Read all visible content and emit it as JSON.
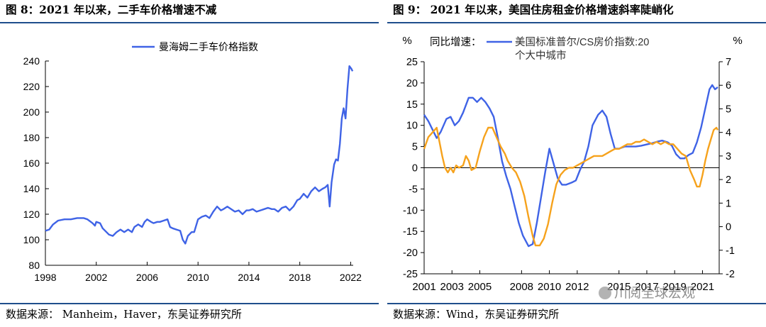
{
  "panels": [
    {
      "title": "图 8：2021 年以来，二手车价格增速不减",
      "source": "数据来源： Manheim，Haver，东吴证券研究所"
    },
    {
      "title": "图 9：  2021 年以来，美国住房租金价格增速斜率陡峭化",
      "source": "数据来源：Wind，东吴证券研究所"
    }
  ],
  "watermark": "川阅全球宏观",
  "colors": {
    "blue": "#3f63e6",
    "orange": "#f6a21c",
    "rule": "#1f4e8c"
  },
  "chart_data": [
    {
      "type": "line",
      "title": "",
      "xlabel": "",
      "ylabel": "",
      "xlim": [
        1998,
        2022.2
      ],
      "ylim": [
        80,
        240
      ],
      "x_ticks": [
        "1998",
        "2002",
        "2006",
        "2010",
        "2014",
        "2018",
        "2022"
      ],
      "y_ticks": [
        "80",
        "100",
        "120",
        "140",
        "160",
        "180",
        "200",
        "220",
        "240"
      ],
      "legend_position": "top-center",
      "series": [
        {
          "name": "曼海姆二手车价格指数",
          "color": "#3f63e6",
          "points": [
            [
              1998.0,
              107
            ],
            [
              1998.3,
              108
            ],
            [
              1998.6,
              112
            ],
            [
              1999.0,
              115
            ],
            [
              1999.5,
              116
            ],
            [
              2000.0,
              116
            ],
            [
              2000.5,
              117
            ],
            [
              2001.0,
              117
            ],
            [
              2001.3,
              116
            ],
            [
              2001.7,
              113
            ],
            [
              2001.9,
              111
            ],
            [
              2002.0,
              114
            ],
            [
              2002.3,
              113
            ],
            [
              2002.5,
              109
            ],
            [
              2002.8,
              106
            ],
            [
              2003.0,
              104
            ],
            [
              2003.3,
              103
            ],
            [
              2003.6,
              106
            ],
            [
              2003.9,
              108
            ],
            [
              2004.2,
              106
            ],
            [
              2004.5,
              108
            ],
            [
              2004.8,
              106
            ],
            [
              2005.0,
              110
            ],
            [
              2005.3,
              112
            ],
            [
              2005.6,
              110
            ],
            [
              2005.8,
              114
            ],
            [
              2006.0,
              116
            ],
            [
              2006.3,
              114
            ],
            [
              2006.5,
              113
            ],
            [
              2006.8,
              114
            ],
            [
              2007.0,
              114
            ],
            [
              2007.3,
              115
            ],
            [
              2007.6,
              116
            ],
            [
              2007.8,
              110
            ],
            [
              2008.0,
              109
            ],
            [
              2008.3,
              108
            ],
            [
              2008.6,
              107
            ],
            [
              2008.8,
              100
            ],
            [
              2009.0,
              97
            ],
            [
              2009.2,
              103
            ],
            [
              2009.5,
              106
            ],
            [
              2009.7,
              106
            ],
            [
              2010.0,
              116
            ],
            [
              2010.3,
              118
            ],
            [
              2010.6,
              119
            ],
            [
              2010.9,
              117
            ],
            [
              2011.2,
              122
            ],
            [
              2011.5,
              126
            ],
            [
              2011.8,
              123
            ],
            [
              2012.0,
              124
            ],
            [
              2012.3,
              126
            ],
            [
              2012.6,
              124
            ],
            [
              2012.9,
              122
            ],
            [
              2013.2,
              123
            ],
            [
              2013.5,
              120
            ],
            [
              2013.8,
              123
            ],
            [
              2014.0,
              123
            ],
            [
              2014.3,
              124
            ],
            [
              2014.6,
              122
            ],
            [
              2014.9,
              123
            ],
            [
              2015.2,
              124
            ],
            [
              2015.5,
              125
            ],
            [
              2015.8,
              124
            ],
            [
              2016.0,
              124
            ],
            [
              2016.3,
              122
            ],
            [
              2016.6,
              125
            ],
            [
              2016.9,
              126
            ],
            [
              2017.2,
              123
            ],
            [
              2017.5,
              126
            ],
            [
              2017.8,
              131
            ],
            [
              2018.0,
              132
            ],
            [
              2018.3,
              136
            ],
            [
              2018.6,
              133
            ],
            [
              2018.9,
              138
            ],
            [
              2019.2,
              141
            ],
            [
              2019.5,
              138
            ],
            [
              2019.8,
              140
            ],
            [
              2020.0,
              141
            ],
            [
              2020.2,
              143
            ],
            [
              2020.35,
              126
            ],
            [
              2020.5,
              145
            ],
            [
              2020.7,
              159
            ],
            [
              2020.85,
              163
            ],
            [
              2021.0,
              162
            ],
            [
              2021.15,
              175
            ],
            [
              2021.3,
              195
            ],
            [
              2021.45,
              203
            ],
            [
              2021.6,
              195
            ],
            [
              2021.75,
              218
            ],
            [
              2021.9,
              236
            ],
            [
              2022.05,
              234
            ],
            [
              2022.15,
              232
            ]
          ]
        }
      ]
    },
    {
      "type": "line",
      "title": "",
      "left_axis_label": "%",
      "right_axis_label": "%",
      "xlim": [
        2001,
        2022.2
      ],
      "ylim_left": [
        -25,
        25
      ],
      "ylim_right": [
        -2,
        7
      ],
      "x_ticks": [
        "2001",
        "2003",
        "2005",
        "2008",
        "2010",
        "2012",
        "2015",
        "2017",
        "2019",
        "2021"
      ],
      "y_ticks_left": [
        "-25",
        "-20",
        "-15",
        "-10",
        "-5",
        "0",
        "5",
        "10",
        "15",
        "20",
        "25"
      ],
      "y_ticks_right": [
        "-2",
        "-1",
        "0",
        "1",
        "2",
        "3",
        "4",
        "5",
        "6",
        "7"
      ],
      "legend_position": "top-left",
      "legend_lines": [
        "同比增速：",
        "美国标准普尔/CS房价指数:20",
        "个大中城市"
      ],
      "series": [
        {
          "name": "美国标准普尔/CS房价指数:20个大中城市",
          "axis": "left",
          "color": "#3f63e6",
          "points": [
            [
              2001.0,
              12.5
            ],
            [
              2001.3,
              11
            ],
            [
              2001.6,
              9
            ],
            [
              2001.9,
              7
            ],
            [
              2002.2,
              8.5
            ],
            [
              2002.6,
              11.5
            ],
            [
              2002.9,
              12
            ],
            [
              2003.2,
              10
            ],
            [
              2003.5,
              11
            ],
            [
              2003.8,
              13
            ],
            [
              2004.2,
              16.5
            ],
            [
              2004.5,
              16.5
            ],
            [
              2004.8,
              15.5
            ],
            [
              2005.1,
              16.5
            ],
            [
              2005.4,
              15.5
            ],
            [
              2005.7,
              14
            ],
            [
              2006.0,
              12
            ],
            [
              2006.3,
              7
            ],
            [
              2006.6,
              1.5
            ],
            [
              2006.9,
              -2
            ],
            [
              2007.2,
              -5
            ],
            [
              2007.5,
              -9
            ],
            [
              2007.8,
              -13
            ],
            [
              2008.1,
              -16
            ],
            [
              2008.5,
              -18.5
            ],
            [
              2008.8,
              -18
            ],
            [
              2009.1,
              -13
            ],
            [
              2009.4,
              -7
            ],
            [
              2009.7,
              -1
            ],
            [
              2010.0,
              4.5
            ],
            [
              2010.3,
              1
            ],
            [
              2010.6,
              -2.5
            ],
            [
              2010.9,
              -4
            ],
            [
              2011.2,
              -4
            ],
            [
              2011.6,
              -3.5
            ],
            [
              2011.9,
              -3
            ],
            [
              2012.2,
              -0.5
            ],
            [
              2012.5,
              1.5
            ],
            [
              2012.8,
              5
            ],
            [
              2013.1,
              10
            ],
            [
              2013.5,
              12.5
            ],
            [
              2013.8,
              13.5
            ],
            [
              2014.1,
              12
            ],
            [
              2014.4,
              8
            ],
            [
              2014.7,
              4.5
            ],
            [
              2015.0,
              4.5
            ],
            [
              2015.4,
              5
            ],
            [
              2015.8,
              5
            ],
            [
              2016.2,
              5
            ],
            [
              2016.6,
              5.2
            ],
            [
              2017.0,
              5.5
            ],
            [
              2017.4,
              5.8
            ],
            [
              2017.8,
              6.2
            ],
            [
              2018.1,
              6.4
            ],
            [
              2018.5,
              6
            ],
            [
              2018.8,
              5.2
            ],
            [
              2019.1,
              3.2
            ],
            [
              2019.4,
              2.2
            ],
            [
              2019.7,
              2.2
            ],
            [
              2020.0,
              3
            ],
            [
              2020.3,
              3.5
            ],
            [
              2020.6,
              6
            ],
            [
              2020.9,
              9.5
            ],
            [
              2021.2,
              14
            ],
            [
              2021.5,
              18.5
            ],
            [
              2021.7,
              19.5
            ],
            [
              2021.9,
              18.5
            ],
            [
              2022.1,
              19
            ]
          ]
        },
        {
          "name": "orange (right axis)",
          "axis": "right",
          "color": "#f6a21c",
          "points": [
            [
              2001.0,
              3.3
            ],
            [
              2001.3,
              3.8
            ],
            [
              2001.6,
              4.0
            ],
            [
              2001.9,
              4.2
            ],
            [
              2002.1,
              3.6
            ],
            [
              2002.3,
              3.0
            ],
            [
              2002.5,
              2.5
            ],
            [
              2002.7,
              2.3
            ],
            [
              2002.9,
              2.5
            ],
            [
              2003.1,
              2.3
            ],
            [
              2003.3,
              2.6
            ],
            [
              2003.5,
              2.5
            ],
            [
              2003.8,
              2.6
            ],
            [
              2004.0,
              3.0
            ],
            [
              2004.2,
              2.8
            ],
            [
              2004.4,
              2.4
            ],
            [
              2004.7,
              2.5
            ],
            [
              2005.0,
              3.2
            ],
            [
              2005.3,
              3.8
            ],
            [
              2005.6,
              4.2
            ],
            [
              2005.9,
              4.2
            ],
            [
              2006.2,
              3.8
            ],
            [
              2006.5,
              3.4
            ],
            [
              2006.8,
              3.1
            ],
            [
              2007.0,
              2.8
            ],
            [
              2007.3,
              2.5
            ],
            [
              2007.6,
              2.3
            ],
            [
              2007.9,
              1.9
            ],
            [
              2008.2,
              1.3
            ],
            [
              2008.5,
              0.4
            ],
            [
              2008.8,
              -0.4
            ],
            [
              2009.0,
              -0.8
            ],
            [
              2009.3,
              -0.8
            ],
            [
              2009.6,
              -0.5
            ],
            [
              2009.9,
              0.1
            ],
            [
              2010.2,
              1.0
            ],
            [
              2010.5,
              1.8
            ],
            [
              2010.8,
              2.2
            ],
            [
              2011.1,
              2.4
            ],
            [
              2011.4,
              2.5
            ],
            [
              2011.7,
              2.5
            ],
            [
              2012.0,
              2.6
            ],
            [
              2012.3,
              2.7
            ],
            [
              2012.6,
              2.8
            ],
            [
              2012.9,
              2.9
            ],
            [
              2013.2,
              3.0
            ],
            [
              2013.5,
              3.0
            ],
            [
              2013.8,
              3.0
            ],
            [
              2014.1,
              3.1
            ],
            [
              2014.4,
              3.2
            ],
            [
              2014.7,
              3.3
            ],
            [
              2015.0,
              3.3
            ],
            [
              2015.3,
              3.4
            ],
            [
              2015.6,
              3.5
            ],
            [
              2015.9,
              3.5
            ],
            [
              2016.2,
              3.6
            ],
            [
              2016.5,
              3.6
            ],
            [
              2016.8,
              3.7
            ],
            [
              2017.1,
              3.6
            ],
            [
              2017.4,
              3.5
            ],
            [
              2017.7,
              3.6
            ],
            [
              2018.0,
              3.5
            ],
            [
              2018.3,
              3.6
            ],
            [
              2018.6,
              3.5
            ],
            [
              2018.9,
              3.5
            ],
            [
              2019.2,
              3.3
            ],
            [
              2019.5,
              3.1
            ],
            [
              2019.8,
              3.0
            ],
            [
              2020.1,
              2.4
            ],
            [
              2020.4,
              2.0
            ],
            [
              2020.6,
              1.7
            ],
            [
              2020.8,
              1.7
            ],
            [
              2021.0,
              2.2
            ],
            [
              2021.2,
              2.8
            ],
            [
              2021.4,
              3.3
            ],
            [
              2021.6,
              3.7
            ],
            [
              2021.8,
              4.1
            ],
            [
              2022.0,
              4.2
            ],
            [
              2022.1,
              4.1
            ]
          ]
        }
      ]
    }
  ]
}
